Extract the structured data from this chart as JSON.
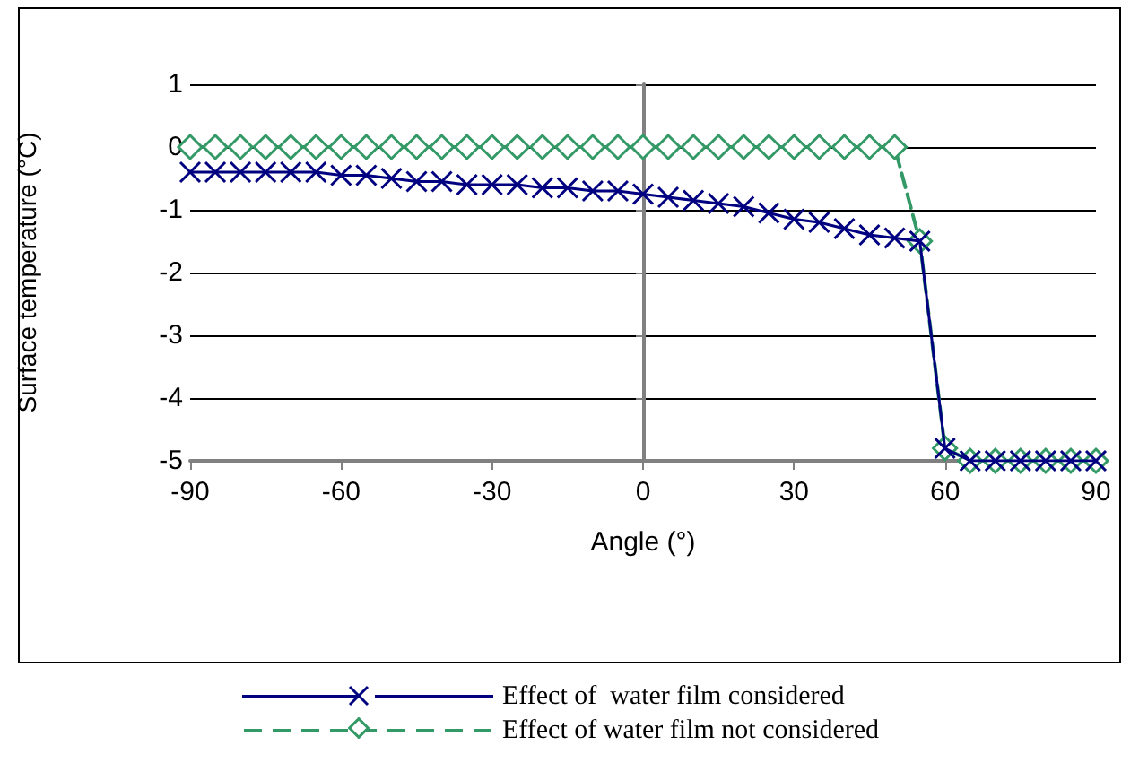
{
  "chart_data": {
    "type": "line",
    "xlabel": "Angle (°)",
    "ylabel": "Surface temperature (°C)",
    "x": [
      -90,
      -85,
      -80,
      -75,
      -70,
      -65,
      -60,
      -55,
      -50,
      -45,
      -40,
      -35,
      -30,
      -25,
      -20,
      -15,
      -10,
      -5,
      0,
      5,
      10,
      15,
      20,
      25,
      30,
      35,
      40,
      45,
      50,
      55,
      60,
      65,
      70,
      75,
      80,
      85,
      90
    ],
    "series": [
      {
        "name": "Effect of  water film considered",
        "color": "#000080",
        "marker": "cross",
        "line_style": "solid",
        "values": [
          -0.4,
          -0.4,
          -0.4,
          -0.4,
          -0.4,
          -0.4,
          -0.45,
          -0.45,
          -0.5,
          -0.55,
          -0.55,
          -0.6,
          -0.6,
          -0.6,
          -0.65,
          -0.65,
          -0.7,
          -0.7,
          -0.75,
          -0.8,
          -0.85,
          -0.9,
          -0.95,
          -1.05,
          -1.15,
          -1.2,
          -1.3,
          -1.4,
          -1.45,
          -1.5,
          -4.8,
          -5,
          -5,
          -5,
          -5,
          -5,
          -5
        ]
      },
      {
        "name": "Effect of water film not considered",
        "color": "#339966",
        "marker": "diamond",
        "line_style": "dashed",
        "values": [
          0,
          0,
          0,
          0,
          0,
          0,
          0,
          0,
          0,
          0,
          0,
          0,
          0,
          0,
          0,
          0,
          0,
          0,
          0,
          0,
          0,
          0,
          0,
          0,
          0,
          0,
          0,
          0,
          0,
          -1.5,
          -4.8,
          -5,
          -5,
          -5,
          -5,
          -5,
          -5
        ]
      }
    ],
    "xlim": [
      -90,
      90
    ],
    "xticks": [
      -90,
      -60,
      -30,
      0,
      30,
      60,
      90
    ],
    "ylim": [
      -5,
      1
    ],
    "yticks": [
      -5,
      -4,
      -3,
      -2,
      -1,
      0,
      1
    ],
    "grid": "y",
    "legend": "bottom"
  }
}
